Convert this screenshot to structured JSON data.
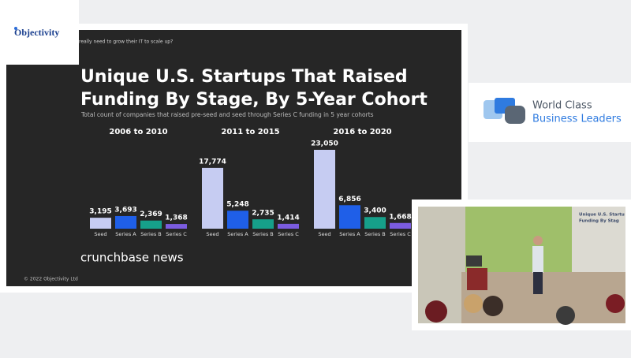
{
  "logo": {
    "text": "Objectivity"
  },
  "slide": {
    "header": "really need to grow their IT to scale up?",
    "brand": "crunchbase news",
    "footer": "© 2022 Objectivity Ltd"
  },
  "card": {
    "line1": "World Class",
    "line2": "Business Leaders"
  },
  "photo": {
    "screen_lines": [
      "Unique U.S. Startu",
      "Funding By Stag"
    ]
  },
  "chart_data": {
    "type": "bar",
    "title": [
      "Unique U.S. Startups That Raised",
      "Funding By Stage, By 5-Year Cohort"
    ],
    "subtitle": "Total count of companies that raised pre-seed and seed through Series C funding in 5 year cohorts",
    "categories": [
      "2006 to 2010",
      "2011 to 2015",
      "2016 to 2020"
    ],
    "series": [
      {
        "name": "Seed",
        "color": "#c6ccf2",
        "values": [
          3195,
          17774,
          23050
        ],
        "value_labels": [
          "3,195",
          "17,774",
          "23,050"
        ]
      },
      {
        "name": "Series A",
        "color": "#1f5fe8",
        "values": [
          3693,
          5248,
          6856
        ],
        "value_labels": [
          "3,693",
          "5,248",
          "6,856"
        ]
      },
      {
        "name": "Series B",
        "color": "#16a08a",
        "values": [
          2369,
          2735,
          3400
        ],
        "value_labels": [
          "2,369",
          "2,735",
          "3,400"
        ]
      },
      {
        "name": "Series C",
        "color": "#7b5ce0",
        "values": [
          1368,
          1414,
          1668
        ],
        "value_labels": [
          "1,368",
          "1,414",
          "1,668"
        ]
      }
    ]
  }
}
